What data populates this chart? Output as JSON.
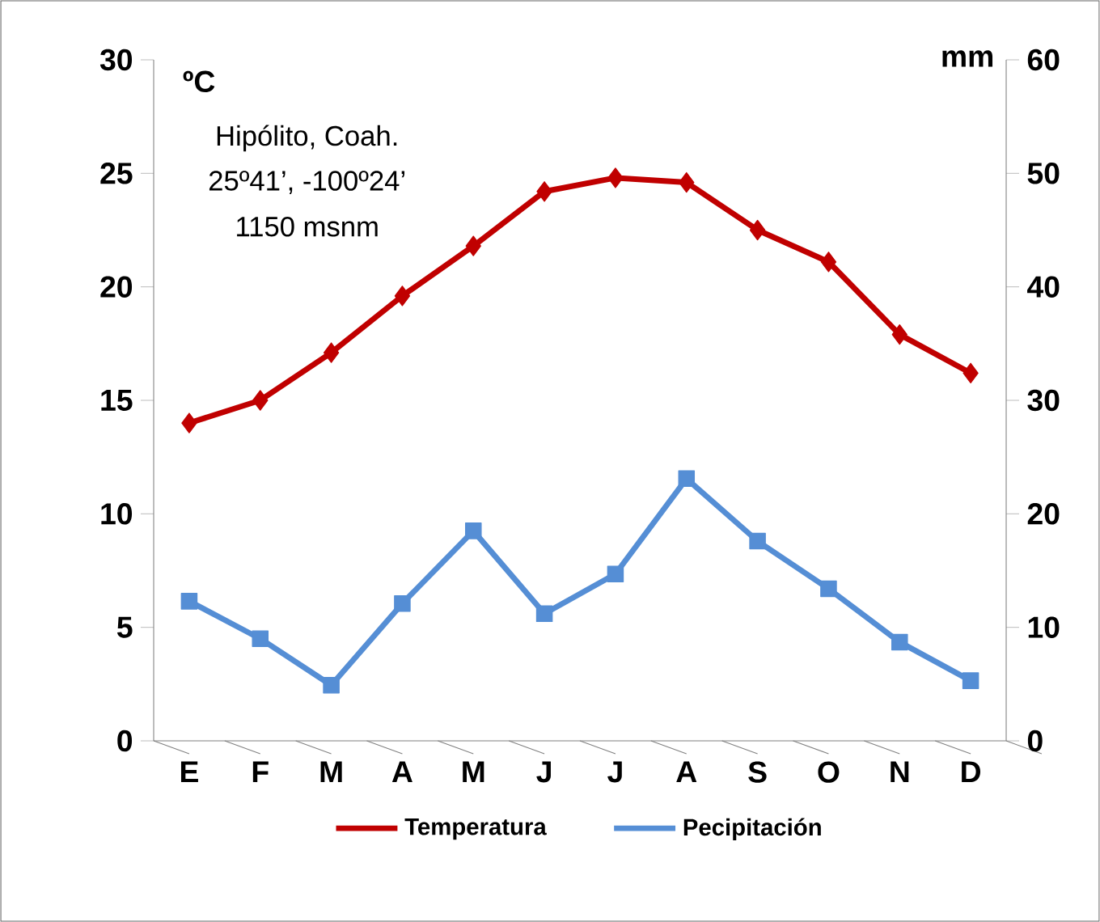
{
  "chart_data": {
    "type": "line",
    "categories": [
      "E",
      "F",
      "M",
      "A",
      "M",
      "J",
      "J",
      "A",
      "S",
      "O",
      "N",
      "D"
    ],
    "series": [
      {
        "name": "Temperatura",
        "color": "#c00000",
        "marker": "diamond",
        "values": [
          14.0,
          15.0,
          17.1,
          19.6,
          21.8,
          24.2,
          24.8,
          24.6,
          22.5,
          21.1,
          17.9,
          16.2
        ]
      },
      {
        "name": "Pecipitación",
        "color": "#558ed5",
        "marker": "square",
        "axis": "y2",
        "values": [
          12.3,
          9.0,
          4.9,
          12.1,
          18.5,
          11.2,
          14.7,
          23.1,
          17.6,
          13.4,
          8.7,
          5.3
        ]
      }
    ],
    "ylabel": "ºC",
    "y2label": "mm",
    "ylim": [
      0,
      30
    ],
    "yticks": [
      0,
      5,
      10,
      15,
      20,
      25,
      30
    ],
    "y2lim": [
      0,
      60
    ],
    "y2ticks": [
      0,
      10,
      20,
      30,
      40,
      50,
      60
    ],
    "annotations": [
      "Hipólito, Coah.",
      "25º41’, -100º24’",
      "1150 msnm"
    ],
    "legend": "bottom"
  }
}
